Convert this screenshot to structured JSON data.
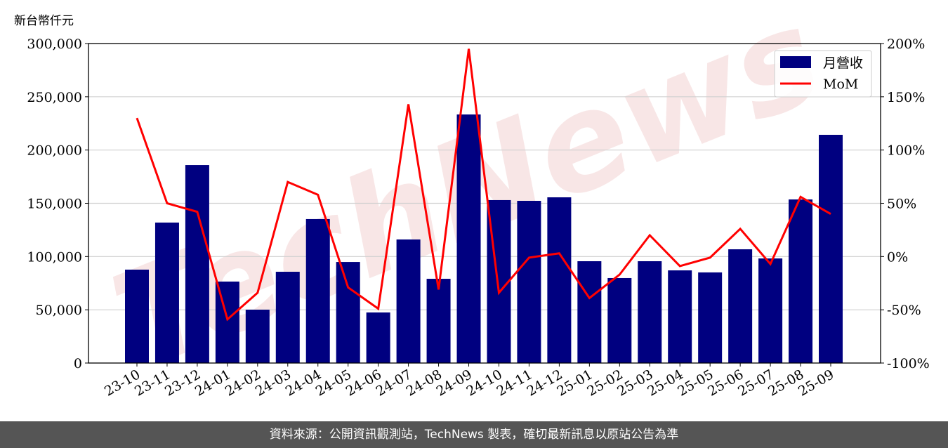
{
  "chart_data": {
    "type": "bar+line",
    "ylabel_left": "新台幣仟元",
    "categories": [
      "23-10",
      "23-11",
      "23-12",
      "24-01",
      "24-02",
      "24-03",
      "24-04",
      "24-05",
      "24-06",
      "24-07",
      "24-08",
      "24-09",
      "24-10",
      "24-11",
      "24-12",
      "25-01",
      "25-02",
      "25-03",
      "25-04",
      "25-05",
      "25-06",
      "25-07",
      "25-08",
      "25-09"
    ],
    "series": [
      {
        "name": "月營收",
        "type": "bar",
        "axis": "left",
        "color": "#000080",
        "values": [
          87700,
          131900,
          185900,
          76500,
          50100,
          85700,
          135200,
          94900,
          47500,
          116000,
          79100,
          233400,
          153000,
          152300,
          155600,
          95600,
          79800,
          95600,
          87000,
          85100,
          106800,
          98200,
          153600,
          214300
        ]
      },
      {
        "name": "MoM",
        "type": "line",
        "axis": "right",
        "color": "#ff0000",
        "values": [
          130,
          50,
          42,
          -59,
          -34,
          70,
          58,
          -29,
          -49,
          143,
          -31,
          195,
          -34,
          -1,
          3,
          -39,
          -17,
          20,
          -9,
          -1,
          26,
          -7,
          56,
          40
        ]
      }
    ],
    "ylim_left": [
      0,
      300000
    ],
    "yticks_left": [
      "0",
      "50,000",
      "100,000",
      "150,000",
      "200,000",
      "250,000",
      "300,000"
    ],
    "ylim_right": [
      -100,
      200
    ],
    "yticks_right": [
      "-100%",
      "-50%",
      "0%",
      "50%",
      "100%",
      "150%",
      "200%"
    ],
    "grid": true,
    "legend": "top-right",
    "watermark": "TechNews"
  },
  "footer": "資料來源：公開資訊觀測站，TechNews 製表，確切最新訊息以原站公告為準"
}
